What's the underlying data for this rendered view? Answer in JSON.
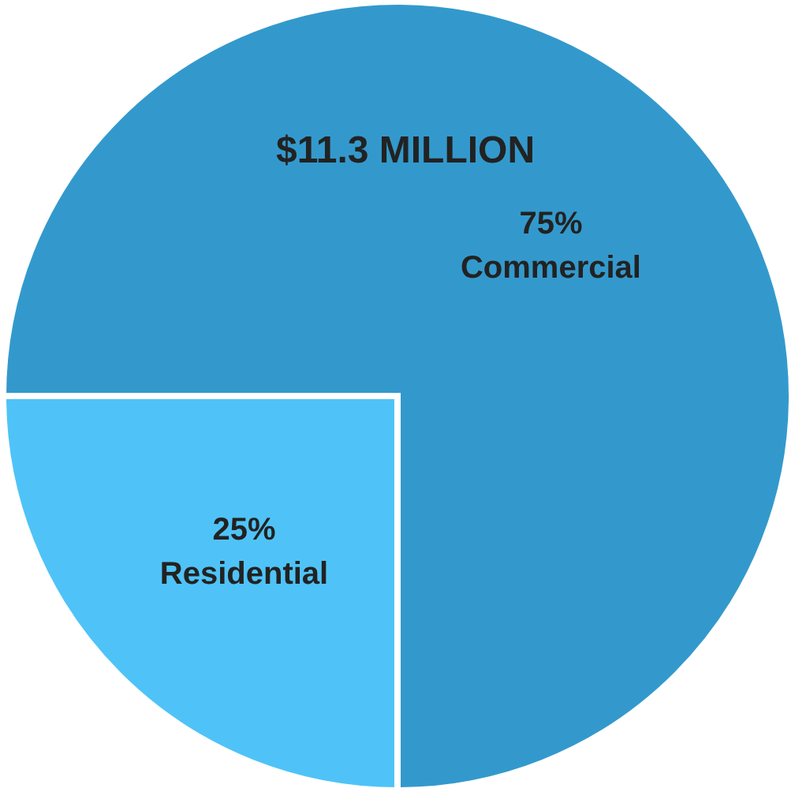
{
  "chart_data": {
    "type": "pie",
    "categories": [
      "Commercial",
      "Residential"
    ],
    "values": [
      75,
      25
    ],
    "value_labels": [
      "75%",
      "25%"
    ],
    "colors": [
      "#3399cc",
      "#4fc3f7"
    ],
    "annotations": [
      "$11.3 MILLION"
    ]
  }
}
